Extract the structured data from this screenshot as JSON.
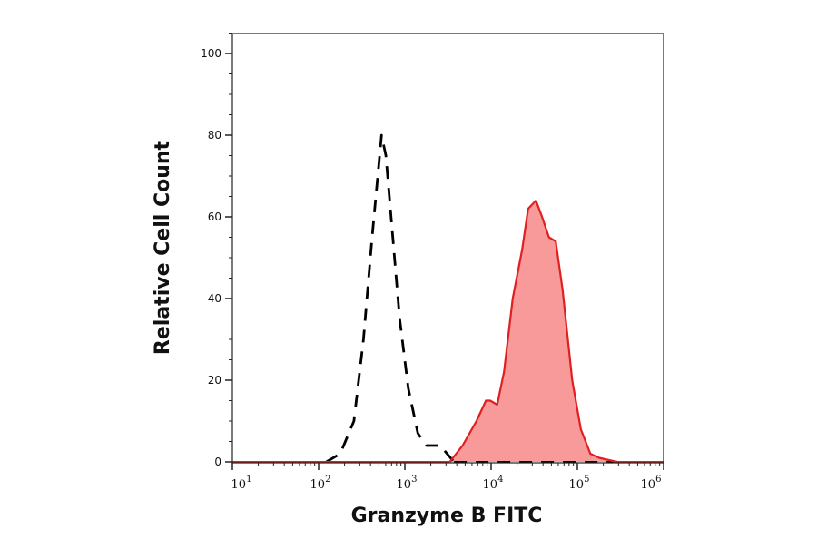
{
  "chart_data": {
    "type": "line",
    "title": "",
    "xlabel": "Granzyme B FITC",
    "ylabel": "Relative Cell Count",
    "x_scale": "log",
    "xlim": [
      10,
      1000000
    ],
    "ylim": [
      0,
      105
    ],
    "x_tick_labels": [
      {
        "base": "10",
        "exp": "1",
        "value": 10
      },
      {
        "base": "10",
        "exp": "2",
        "value": 100
      },
      {
        "base": "10",
        "exp": "3",
        "value": 1000
      },
      {
        "base": "10",
        "exp": "4",
        "value": 10000
      },
      {
        "base": "10",
        "exp": "5",
        "value": 100000
      },
      {
        "base": "10",
        "exp": "6",
        "value": 1000000
      }
    ],
    "y_ticks": [
      "0",
      "20",
      "40",
      "60",
      "80",
      "100"
    ],
    "grid": false,
    "series": [
      {
        "style": "dashed",
        "color": "#000000",
        "fill": false,
        "x": [
          123,
          178,
          257,
          331,
          417,
          537,
          603,
          724,
          871,
          1096,
          1413,
          1778,
          2570,
          3715
        ],
        "y": [
          0,
          2,
          10,
          30,
          55,
          80,
          75,
          55,
          35,
          18,
          7,
          4,
          4,
          0
        ]
      },
      {
        "style": "solid",
        "color": "#e02020",
        "fill": true,
        "fill_color": "#f99a9a",
        "x": [
          3311,
          4677,
          6761,
          8710,
          9772,
          11749,
          14125,
          17783,
          22909,
          26915,
          33113,
          38905,
          46774,
          56234,
          67608,
          87096,
          109648,
          141254,
          177828,
          288403
        ],
        "y": [
          0,
          4,
          10,
          15,
          15,
          14,
          22,
          40,
          52,
          62,
          64,
          60,
          55,
          54,
          42,
          20,
          8,
          2,
          1,
          0
        ]
      }
    ]
  }
}
